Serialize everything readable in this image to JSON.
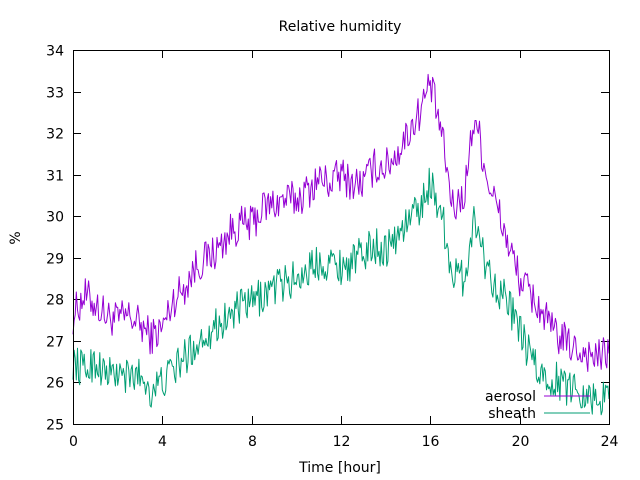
{
  "chart_data": {
    "type": "line",
    "title": "Relative humidity",
    "xlabel": "Time [hour]",
    "ylabel": "%",
    "xlim": [
      0,
      24
    ],
    "ylim": [
      25,
      34
    ],
    "xticks": [
      0,
      4,
      8,
      12,
      16,
      20,
      24
    ],
    "yticks": [
      25,
      26,
      27,
      28,
      29,
      30,
      31,
      32,
      33,
      34
    ],
    "grid": false,
    "legend_position": "bottom-right",
    "series": [
      {
        "name": "aerosol",
        "color": "#9400d3",
        "x": [
          0,
          0.5,
          1,
          1.5,
          2,
          2.5,
          3,
          3.5,
          4,
          4.5,
          5,
          5.5,
          6,
          6.5,
          7,
          7.5,
          8,
          8.5,
          9,
          9.5,
          10,
          10.5,
          11,
          11.5,
          12,
          12.5,
          13,
          13.5,
          14,
          14.5,
          15,
          15.5,
          16,
          16.5,
          17,
          17.5,
          18,
          18.5,
          19,
          19.5,
          20,
          20.5,
          21,
          21.5,
          22,
          22.5,
          23,
          23.5,
          24
        ],
        "y": [
          27.6,
          28.1,
          27.9,
          27.6,
          27.5,
          27.6,
          27.4,
          27.1,
          27.3,
          28.0,
          28.3,
          28.8,
          29.0,
          29.2,
          29.6,
          29.8,
          29.8,
          30.2,
          30.3,
          30.4,
          30.4,
          30.6,
          30.9,
          30.8,
          31.0,
          30.8,
          30.8,
          31.2,
          31.2,
          31.5,
          32.0,
          32.5,
          33.2,
          32.0,
          30.2,
          30.5,
          32.5,
          31.0,
          30.2,
          29.3,
          28.5,
          28.1,
          27.7,
          27.2,
          27.0,
          26.8,
          26.7,
          26.6,
          26.7
        ]
      },
      {
        "name": "sheath",
        "color": "#009e73",
        "x": [
          0,
          0.5,
          1,
          1.5,
          2,
          2.5,
          3,
          3.5,
          4,
          4.5,
          5,
          5.5,
          6,
          6.5,
          7,
          7.5,
          8,
          8.5,
          9,
          9.5,
          10,
          10.5,
          11,
          11.5,
          12,
          12.5,
          13,
          13.5,
          14,
          14.5,
          15,
          15.5,
          16,
          16.5,
          17,
          17.5,
          18,
          18.5,
          19,
          19.5,
          20,
          20.5,
          21,
          21.5,
          22,
          22.5,
          23,
          23.5,
          24
        ],
        "y": [
          26.5,
          26.3,
          26.5,
          26.2,
          26.2,
          26.1,
          26.2,
          25.8,
          26.0,
          26.3,
          26.6,
          26.9,
          27.2,
          27.4,
          27.6,
          27.8,
          27.9,
          28.1,
          28.3,
          28.4,
          28.5,
          28.7,
          28.9,
          28.9,
          28.8,
          28.9,
          29.1,
          29.3,
          29.2,
          29.5,
          29.9,
          30.2,
          30.8,
          30.1,
          28.6,
          28.5,
          30.0,
          28.8,
          28.3,
          27.9,
          27.2,
          26.6,
          26.1,
          26.1,
          25.9,
          25.9,
          25.7,
          25.6,
          25.6
        ]
      }
    ]
  }
}
